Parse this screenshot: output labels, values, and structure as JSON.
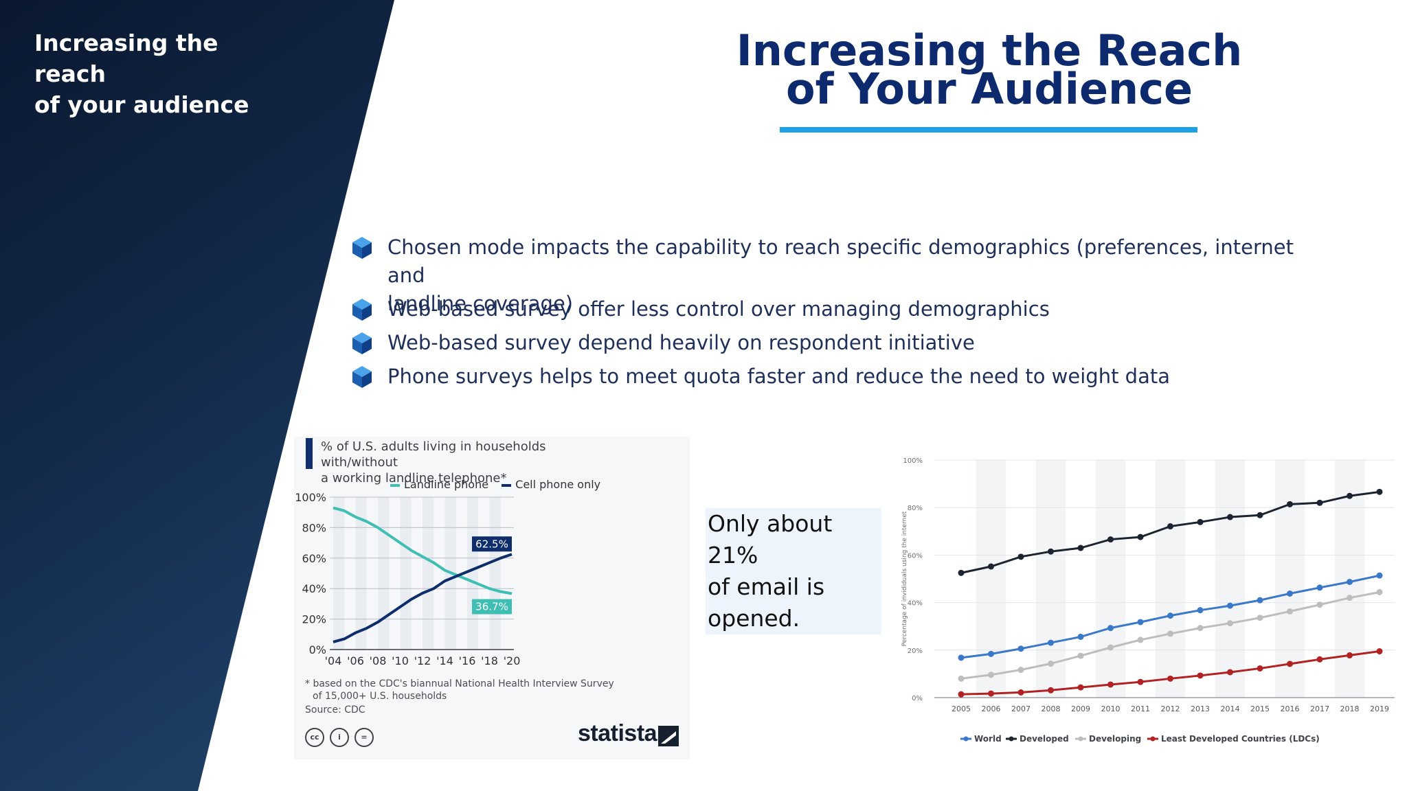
{
  "colors": {
    "panel_dark": "#0b1a33",
    "title_blue": "#0d2a6e",
    "underline": "#1da1e6",
    "bullet_text": "#1e2f5a"
  },
  "sidebar": {
    "title_line1": "Increasing the reach",
    "title_line2": "of your audience"
  },
  "header": {
    "title_line1": "Increasing the Reach",
    "title_line2": "of Your Audience"
  },
  "bullets": [
    {
      "icon": "cube-icon",
      "line1": "Chosen mode impacts the capability to reach specific demographics (preferences, internet and",
      "line2": "landline coverage)"
    },
    {
      "icon": "cube-icon",
      "line1": "Web-based survey offer less control over managing demographics"
    },
    {
      "icon": "cube-icon",
      "line1": "Web-based survey depend heavily on respondent initiative"
    },
    {
      "icon": "cube-icon",
      "line1": "Phone surveys helps to meet quota faster and reduce the need to weight data"
    }
  ],
  "callout": {
    "line1": "Only about 21%",
    "line2": "of email is",
    "line3": "opened."
  },
  "statista": {
    "title_line1": "% of U.S. adults living in households with/without",
    "title_line2": "a working landline telephone*",
    "footnote_line1": "* based on the CDC's biannual National Health Interview Survey",
    "footnote_line2": "of 15,000+ U.S. households",
    "source": "Source: CDC",
    "brand": "statista",
    "license_icons": [
      "cc-icon",
      "by-icon",
      "nd-icon"
    ]
  },
  "chart_data": [
    {
      "type": "line",
      "title": "% of U.S. adults living in households with/without a working landline telephone*",
      "x": [
        2004,
        2005,
        2006,
        2007,
        2008,
        2009,
        2010,
        2011,
        2012,
        2013,
        2014,
        2015,
        2016,
        2017,
        2018,
        2019,
        2020
      ],
      "x_tick_labels": [
        "'04",
        "'06",
        "'08",
        "'10",
        "'12",
        "'14",
        "'16",
        "'18",
        "'20"
      ],
      "y_tick_labels": [
        "0%",
        "20%",
        "40%",
        "60%",
        "80%",
        "100%"
      ],
      "ylim": [
        0,
        100
      ],
      "series": [
        {
          "name": "Landline phone",
          "color": "#3fbfb3",
          "values": [
            93,
            91,
            87,
            84,
            80,
            75,
            70,
            65,
            61,
            57,
            52,
            49,
            46,
            43,
            40,
            38,
            36.7
          ]
        },
        {
          "name": "Cell phone only",
          "color": "#0d2e6b",
          "values": [
            5,
            7,
            11,
            14,
            18,
            23,
            28,
            33,
            37,
            40,
            45,
            48,
            51,
            54,
            57,
            60,
            62.5
          ]
        }
      ],
      "data_labels": [
        "62.5%",
        "36.7%"
      ],
      "legend": "top"
    },
    {
      "type": "line",
      "ylabel": "Percentage of invididuals using the internet",
      "x": [
        2005,
        2006,
        2007,
        2008,
        2009,
        2010,
        2011,
        2012,
        2013,
        2014,
        2015,
        2016,
        2017,
        2018,
        2019
      ],
      "x_tick_labels": [
        "2005",
        "2006",
        "2007",
        "2008",
        "2009",
        "2010",
        "2011",
        "2012",
        "2013",
        "2014",
        "2015",
        "2016",
        "2017",
        "2018",
        "2019"
      ],
      "y_tick_labels": [
        "0%",
        "20%",
        "40%",
        "60%",
        "80%",
        "100%"
      ],
      "ylim": [
        0,
        100
      ],
      "series": [
        {
          "name": "World",
          "color": "#3a78c9",
          "values": [
            16.8,
            18.4,
            20.6,
            23.1,
            25.6,
            29.3,
            31.8,
            34.5,
            36.8,
            38.7,
            41.0,
            43.8,
            46.3,
            48.7,
            51.4
          ]
        },
        {
          "name": "Developed",
          "color": "#1b2430",
          "values": [
            52.5,
            55.2,
            59.3,
            61.5,
            63.0,
            66.6,
            67.6,
            72.1,
            73.9,
            76.0,
            76.8,
            81.4,
            82.0,
            84.9,
            86.6
          ]
        },
        {
          "name": "Developing",
          "color": "#bdbdbd",
          "values": [
            8.0,
            9.6,
            11.7,
            14.3,
            17.6,
            21.1,
            24.3,
            26.9,
            29.3,
            31.3,
            33.6,
            36.3,
            39.1,
            42.0,
            44.4
          ]
        },
        {
          "name": "Least Developed Countries (LDCs)",
          "color": "#b22222",
          "values": [
            1.4,
            1.7,
            2.2,
            3.1,
            4.3,
            5.5,
            6.6,
            8.0,
            9.3,
            10.7,
            12.3,
            14.2,
            16.1,
            17.8,
            19.5
          ]
        }
      ],
      "legend": "bottom"
    }
  ]
}
